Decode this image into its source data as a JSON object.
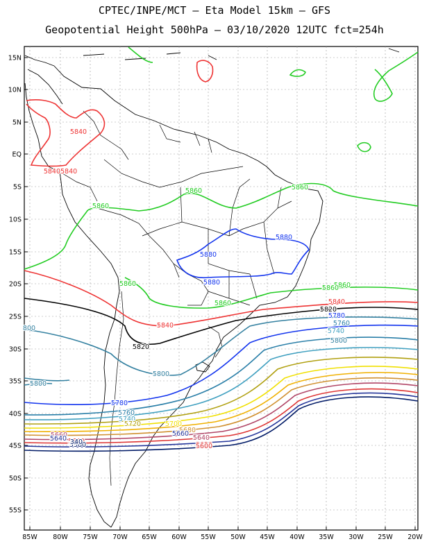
{
  "header": {
    "line1": "CPTEC/INPE/MCT –  Eta Model 15km – GFS",
    "line2": "Geopotential Height 500hPa – 03/10/2020 12UTC fct=254h"
  },
  "axes": {
    "lat_labels": [
      "15N",
      "10N",
      "5N",
      "EQ",
      "5S",
      "10S",
      "15S",
      "20S",
      "25S",
      "30S",
      "35S",
      "40S",
      "45S",
      "50S",
      "55S"
    ],
    "lon_labels": [
      "85W",
      "80W",
      "75W",
      "70W",
      "65W",
      "60W",
      "55W",
      "50W",
      "45W",
      "40W",
      "35W",
      "30W",
      "25W",
      "20W"
    ]
  },
  "contour_colors": {
    "5580": "#001a66",
    "5600": "#223399",
    "5620": "#dd3333",
    "5640": "#b04466",
    "5660": "#d09030",
    "5680": "#f0b000",
    "5700": "#f0e000",
    "5720": "#b0a010",
    "5740": "#40a0c0",
    "5760": "#2a7fa8",
    "5780": "#1133ee",
    "5800": "#3380a0",
    "5820": "#000000",
    "5840": "#ee3333",
    "5860": "#22cc22",
    "5880": "#1133ee"
  },
  "contour_labels": [
    {
      "text": "5840",
      "color": "#ee3333"
    },
    {
      "text": "58405840",
      "color": "#ee3333"
    },
    {
      "text": "5860",
      "color": "#22cc22"
    },
    {
      "text": "5860",
      "color": "#22cc22"
    },
    {
      "text": "5860",
      "color": "#22cc22"
    },
    {
      "text": "5860",
      "color": "#22cc22"
    },
    {
      "text": "5860",
      "color": "#22cc22"
    },
    {
      "text": "5880",
      "color": "#1133ee"
    },
    {
      "text": "5880",
      "color": "#1133ee"
    },
    {
      "text": "5880",
      "color": "#1133ee"
    },
    {
      "text": "5860",
      "color": "#22cc22"
    },
    {
      "text": "5860",
      "color": "#22cc22"
    },
    {
      "text": "5840",
      "color": "#ee3333"
    },
    {
      "text": "5820",
      "color": "#000000"
    },
    {
      "text": "5840",
      "color": "#ee3333"
    },
    {
      "text": "5820",
      "color": "#000000"
    },
    {
      "text": "5800",
      "color": "#3380a0"
    },
    {
      "text": "5780",
      "color": "#1133ee"
    },
    {
      "text": "5760",
      "color": "#2a7fa8"
    },
    {
      "text": "5740",
      "color": "#40a0c0"
    },
    {
      "text": "800",
      "color": "#3380a0"
    },
    {
      "text": "5800",
      "color": "#3380a0"
    },
    {
      "text": "5800",
      "color": "#3380a0"
    },
    {
      "text": "5780",
      "color": "#1133ee"
    },
    {
      "text": "5760",
      "color": "#2a7fa8"
    },
    {
      "text": "5740",
      "color": "#40a0c0"
    },
    {
      "text": "5720",
      "color": "#b0a010"
    },
    {
      "text": "5700",
      "color": "#f0e000"
    },
    {
      "text": "5680",
      "color": "#d09030"
    },
    {
      "text": "5660",
      "color": "#b04466"
    },
    {
      "text": "5640",
      "color": "#223399"
    },
    {
      "text": "5620",
      "color": "#dd3333"
    },
    {
      "text": "5580",
      "color": "#001a66"
    },
    {
      "text": "5660",
      "color": "#223399"
    },
    {
      "text": "5640",
      "color": "#b04466"
    },
    {
      "text": "340",
      "color": "#001a66"
    },
    {
      "text": "5620",
      "color": "#dd3333"
    },
    {
      "text": "5600",
      "color": "#dd3333"
    }
  ]
}
